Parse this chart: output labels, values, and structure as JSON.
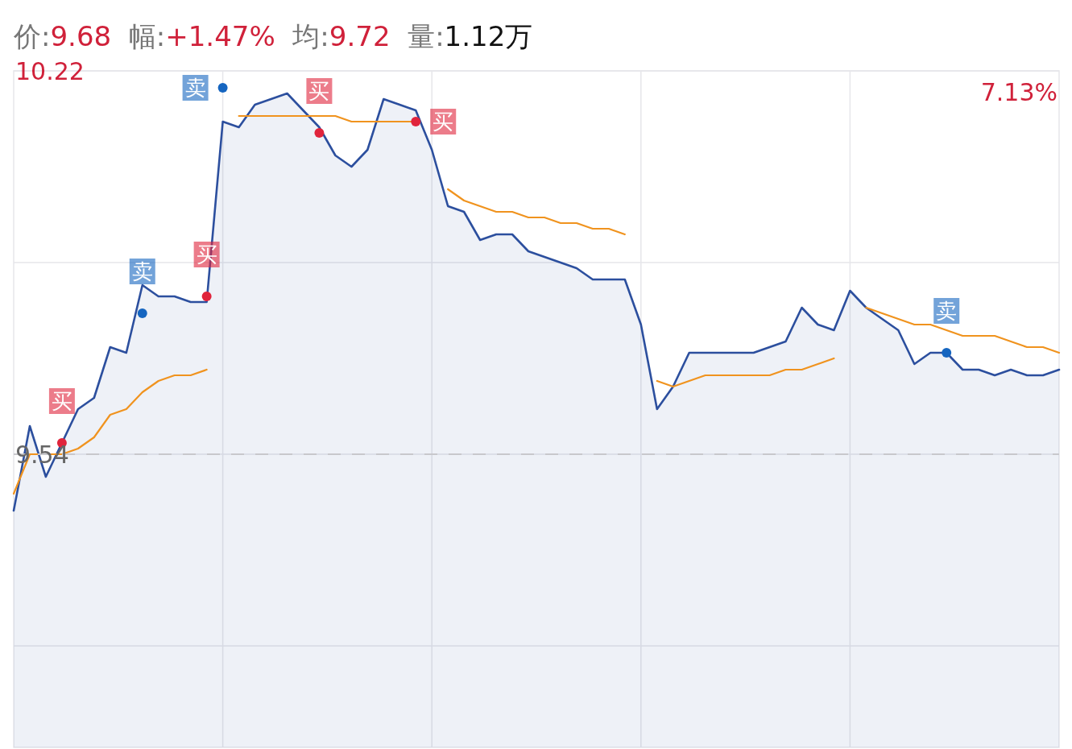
{
  "chart_data": {
    "type": "line",
    "title": "价:9.68 幅:+1.47% 均:9.72 量:1.12万",
    "categories": [
      null,
      null,
      null,
      null,
      null,
      null,
      null,
      null,
      null,
      null,
      null,
      null,
      null,
      null,
      null,
      null,
      null,
      null,
      null,
      null,
      null,
      null,
      null,
      null,
      null,
      null,
      null,
      null,
      null,
      null,
      null,
      null,
      null,
      null,
      null,
      null,
      null,
      null,
      null,
      null,
      null,
      null,
      null,
      null,
      null,
      null,
      null,
      null,
      null,
      null,
      null,
      null,
      null,
      null,
      null,
      null,
      null,
      null,
      null,
      null,
      null,
      null,
      null,
      null,
      null,
      null
    ],
    "series": [
      {
        "type": "area",
        "color": "#2c4f9e",
        "values": [
          9.44,
          9.59,
          9.5,
          9.56,
          9.62,
          9.64,
          9.73,
          9.72,
          9.84,
          9.82,
          9.82,
          9.81,
          9.81,
          10.13,
          10.12,
          10.16,
          10.17,
          10.18,
          10.15,
          10.12,
          10.07,
          10.05,
          10.08,
          10.17,
          10.16,
          10.15,
          10.08,
          9.98,
          9.97,
          9.92,
          9.93,
          9.93,
          9.9,
          9.89,
          9.88,
          9.87,
          9.85,
          9.85,
          9.85,
          9.77,
          9.62,
          9.66,
          9.72,
          9.72,
          9.72,
          9.72,
          9.72,
          9.73,
          9.74,
          9.8,
          9.77,
          9.76,
          9.83,
          9.8,
          9.78,
          9.76,
          9.7,
          9.72,
          9.72,
          9.69,
          9.69,
          9.68,
          9.69,
          9.68,
          9.68,
          9.69
        ]
      },
      {
        "type": "line",
        "color": "#f0931e",
        "values": [
          9.47,
          9.54,
          9.54,
          9.54,
          9.55,
          9.57,
          9.61,
          9.62,
          9.65,
          9.67,
          9.68,
          9.68,
          9.69,
          null,
          10.14,
          10.14,
          10.14,
          10.14,
          10.14,
          10.14,
          10.14,
          10.13,
          10.13,
          10.13,
          10.13,
          10.13,
          null,
          10.01,
          9.99,
          9.98,
          9.97,
          9.97,
          9.96,
          9.96,
          9.95,
          9.95,
          9.94,
          9.94,
          9.93,
          null,
          9.67,
          9.66,
          9.67,
          9.68,
          9.68,
          9.68,
          9.68,
          9.68,
          9.69,
          9.69,
          9.7,
          9.71,
          null,
          9.8,
          9.79,
          9.78,
          9.77,
          9.77,
          9.76,
          9.75,
          9.75,
          9.75,
          9.74,
          9.73,
          9.73,
          9.72
        ]
      },
      {
        "type": "scatter",
        "name": "买",
        "color": "#e0243c",
        "marker": "circle",
        "values": [
          null,
          null,
          null,
          9.56,
          null,
          null,
          null,
          null,
          null,
          null,
          null,
          null,
          9.82,
          null,
          null,
          null,
          null,
          null,
          null,
          10.11,
          null,
          null,
          null,
          null,
          null,
          10.13,
          null,
          null,
          null,
          null,
          null,
          null,
          null,
          null,
          null,
          null,
          null,
          null,
          null,
          null,
          null,
          null,
          null,
          null,
          null,
          null,
          null,
          null,
          null,
          null,
          null,
          null,
          null,
          null,
          null,
          null,
          null,
          null,
          null,
          null,
          null,
          null,
          null,
          null,
          null,
          null
        ]
      },
      {
        "type": "scatter",
        "name": "卖",
        "color": "#1565c0",
        "marker": "circle",
        "values": [
          null,
          null,
          null,
          null,
          null,
          null,
          null,
          null,
          9.79,
          null,
          null,
          null,
          null,
          10.19,
          null,
          null,
          null,
          null,
          null,
          null,
          null,
          null,
          null,
          null,
          null,
          null,
          null,
          null,
          null,
          null,
          null,
          null,
          null,
          null,
          null,
          null,
          null,
          null,
          null,
          null,
          null,
          null,
          null,
          null,
          null,
          null,
          null,
          null,
          null,
          null,
          null,
          null,
          null,
          null,
          null,
          null,
          null,
          null,
          9.72,
          null,
          null,
          null,
          null,
          null,
          null,
          null
        ]
      }
    ],
    "ylim": [
      9.02,
      10.22
    ],
    "yticks": [
      9.54,
      10.22,
      {
        "value": 9.88,
        "label": null
      },
      {
        "value": 9.2,
        "label": null
      }
    ],
    "annotations": [
      "7.13%"
    ],
    "ref_lines": [
      {
        "axis": "y",
        "value": 9.54,
        "color": "#c8c8cc",
        "line_style": "dashed"
      }
    ],
    "grid": true
  }
}
